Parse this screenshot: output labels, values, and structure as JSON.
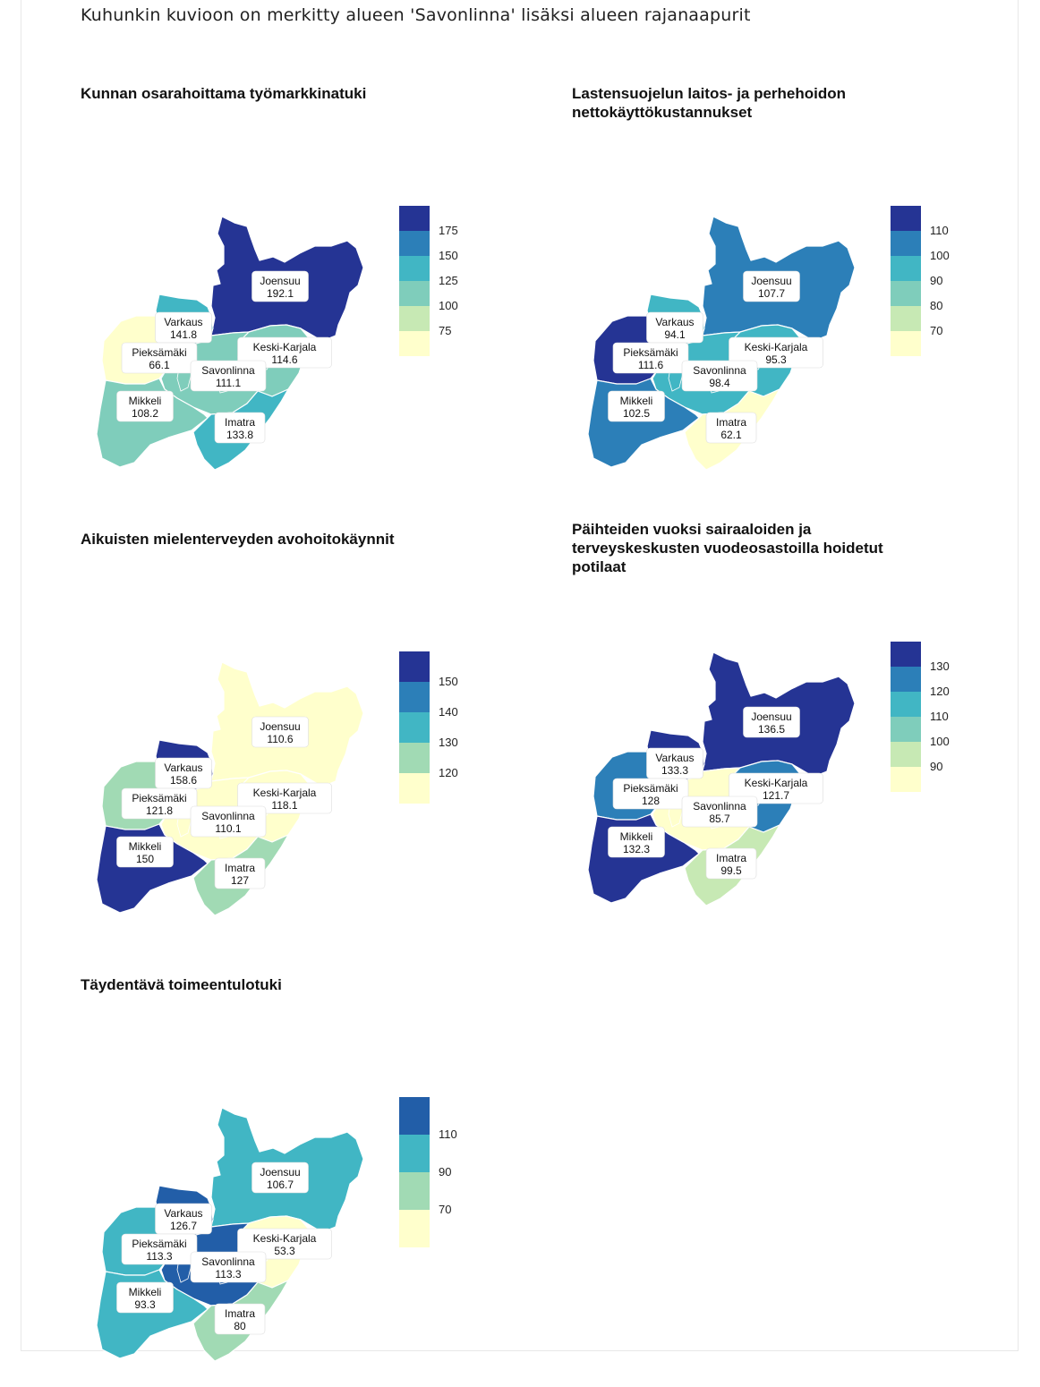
{
  "title": "Kuhunkin kuvioon on merkitty alueen 'Savonlinna' lisäksi alueen rajanaapurit",
  "region_names": [
    "Joensuu",
    "Varkaus",
    "Pieksämäki",
    "Keski-Karjala",
    "Savonlinna",
    "Mikkeli",
    "Imatra"
  ],
  "panels": [
    {
      "title": "Kunnan osarahoittama työmarkkinatuki",
      "values": {
        "Joensuu": "192.1",
        "Varkaus": "141.8",
        "Pieksämäki": "66.1",
        "Keski-Karjala": "114.6",
        "Savonlinna": "111.1",
        "Mikkeli": "108.2",
        "Imatra": "133.8"
      },
      "fills": {
        "Joensuu": "#253494",
        "Varkaus": "#41b6c4",
        "Pieksämäki": "#ffffcc",
        "Keski-Karjala": "#7fcdbb",
        "Savonlinna": "#7fcdbb",
        "Mikkeli": "#7fcdbb",
        "Imatra": "#41b6c4"
      },
      "legend_colors": [
        "#253494",
        "#2c7fb8",
        "#41b6c4",
        "#7fcdbb",
        "#c7e9b4",
        "#ffffcc"
      ],
      "legend_ticks": [
        "175",
        "150",
        "125",
        "100",
        "75"
      ]
    },
    {
      "title": "Lastensuojelun laitos- ja perhehoidon nettokäyttökustannukset",
      "values": {
        "Joensuu": "107.7",
        "Varkaus": "94.1",
        "Pieksämäki": "111.6",
        "Keski-Karjala": "95.3",
        "Savonlinna": "98.4",
        "Mikkeli": "102.5",
        "Imatra": "62.1"
      },
      "fills": {
        "Joensuu": "#2c7fb8",
        "Varkaus": "#41b6c4",
        "Pieksämäki": "#253494",
        "Keski-Karjala": "#41b6c4",
        "Savonlinna": "#41b6c4",
        "Mikkeli": "#2c7fb8",
        "Imatra": "#ffffcc"
      },
      "legend_colors": [
        "#253494",
        "#2c7fb8",
        "#41b6c4",
        "#7fcdbb",
        "#c7e9b4",
        "#ffffcc"
      ],
      "legend_ticks": [
        "110",
        "100",
        "90",
        "80",
        "70"
      ]
    },
    {
      "title": "Aikuisten mielenterveyden avohoitokäynnit",
      "values": {
        "Joensuu": "110.6",
        "Varkaus": "158.6",
        "Pieksämäki": "121.8",
        "Keski-Karjala": "118.1",
        "Savonlinna": "110.1",
        "Mikkeli": "150",
        "Imatra": "127"
      },
      "fills": {
        "Joensuu": "#ffffcc",
        "Varkaus": "#253494",
        "Pieksämäki": "#a1dab4",
        "Keski-Karjala": "#ffffcc",
        "Savonlinna": "#ffffcc",
        "Mikkeli": "#253494",
        "Imatra": "#a1dab4"
      },
      "legend_colors": [
        "#253494",
        "#2c7fb8",
        "#41b6c4",
        "#a1dab4",
        "#ffffcc"
      ],
      "legend_ticks": [
        "150",
        "140",
        "130",
        "120"
      ]
    },
    {
      "title": "Päihteiden vuoksi sairaaloiden ja terveyskeskusten vuodeosastoilla hoidetut potilaat",
      "values": {
        "Joensuu": "136.5",
        "Varkaus": "133.3",
        "Pieksämäki": "128",
        "Keski-Karjala": "121.7",
        "Savonlinna": "85.7",
        "Mikkeli": "132.3",
        "Imatra": "99.5"
      },
      "fills": {
        "Joensuu": "#253494",
        "Varkaus": "#253494",
        "Pieksämäki": "#2c7fb8",
        "Keski-Karjala": "#2c7fb8",
        "Savonlinna": "#ffffcc",
        "Mikkeli": "#253494",
        "Imatra": "#c7e9b4"
      },
      "legend_colors": [
        "#253494",
        "#2c7fb8",
        "#41b6c4",
        "#7fcdbb",
        "#c7e9b4",
        "#ffffcc"
      ],
      "legend_ticks": [
        "130",
        "120",
        "110",
        "100",
        "90"
      ]
    },
    {
      "title": "Täydentävä toimeentulotuki",
      "values": {
        "Joensuu": "106.7",
        "Varkaus": "126.7",
        "Pieksämäki": "113.3",
        "Keski-Karjala": "53.3",
        "Savonlinna": "113.3",
        "Mikkeli": "93.3",
        "Imatra": "80"
      },
      "fills": {
        "Joensuu": "#41b6c4",
        "Varkaus": "#225ea8",
        "Pieksämäki": "#41b6c4",
        "Keski-Karjala": "#ffffcc",
        "Savonlinna": "#225ea8",
        "Mikkeli": "#41b6c4",
        "Imatra": "#a1dab4"
      },
      "legend_colors": [
        "#225ea8",
        "#41b6c4",
        "#a1dab4",
        "#ffffcc"
      ],
      "legend_ticks": [
        "110",
        "90",
        "70"
      ]
    }
  ]
}
